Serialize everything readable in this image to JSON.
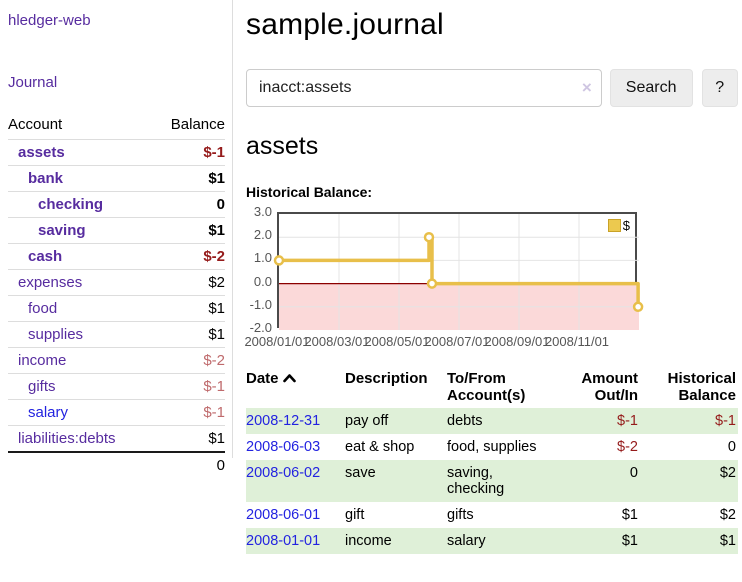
{
  "app": {
    "title": "hledger-web",
    "nav_journal": "Journal"
  },
  "sidebar": {
    "col_account": "Account",
    "col_balance": "Balance",
    "accounts": [
      {
        "label": "assets",
        "value": "$-1",
        "depth": 0,
        "bold": true,
        "link": "purple"
      },
      {
        "label": "bank",
        "value": "$1",
        "depth": 1,
        "bold": true,
        "link": "purple"
      },
      {
        "label": "checking",
        "value": "0",
        "depth": 2,
        "bold": true,
        "link": "purple"
      },
      {
        "label": "saving",
        "value": "$1",
        "depth": 2,
        "bold": true,
        "link": "purple"
      },
      {
        "label": "cash",
        "value": "$-2",
        "depth": 1,
        "bold": true,
        "link": "purple"
      },
      {
        "label": "expenses",
        "value": "$2",
        "depth": 0,
        "bold": false,
        "link": "purple"
      },
      {
        "label": "food",
        "value": "$1",
        "depth": 1,
        "bold": false,
        "link": "purple"
      },
      {
        "label": "supplies",
        "value": "$1",
        "depth": 1,
        "bold": false,
        "link": "purple"
      },
      {
        "label": "income",
        "value": "$-2",
        "depth": 0,
        "bold": false,
        "link": "purple"
      },
      {
        "label": "gifts",
        "value": "$-1",
        "depth": 1,
        "bold": false,
        "link": "purple"
      },
      {
        "label": "salary",
        "value": "$-1",
        "depth": 1,
        "bold": false,
        "link": "blue"
      },
      {
        "label": "liabilities:debts",
        "value": "$1",
        "depth": 0,
        "bold": false,
        "link": "purple"
      }
    ],
    "total": "0"
  },
  "header": {
    "title": "sample.journal"
  },
  "search": {
    "value": "inacct:assets",
    "clear_icon": "×",
    "button_label": "Search",
    "help_label": "?"
  },
  "account_page": {
    "heading": "assets",
    "chart_label": "Historical Balance:"
  },
  "chart_data": {
    "type": "line",
    "title": "Historical Balance",
    "step": true,
    "legend": [
      {
        "label": "$",
        "color": "#ecc94f"
      }
    ],
    "ylim": [
      -2,
      3
    ],
    "y_ticks": [
      3.0,
      2.0,
      1.0,
      0.0,
      -1.0,
      -2.0
    ],
    "x_tick_labels": [
      "2008/01/01",
      "2008/03/01",
      "2008/05/01",
      "2008/07/01",
      "2008/09/01",
      "2008/11/01"
    ],
    "x_tick_months": [
      0,
      2,
      4,
      6,
      8,
      10
    ],
    "xlim_months": [
      0,
      12
    ],
    "points": [
      {
        "date": "2008-01-01",
        "x": 0,
        "y": 1
      },
      {
        "date": "2008-06-01",
        "x": 5,
        "y": 2
      },
      {
        "date": "2008-06-03",
        "x": 5.1,
        "y": 0
      },
      {
        "date": "2008-12-31",
        "x": 11.97,
        "y": -1
      }
    ],
    "line_color": "#e8bf4a",
    "negative_fill": "#fbd9d9",
    "zero_line_color": "#8b0000",
    "grid_color": "#e4e4e4"
  },
  "register": {
    "columns": {
      "date": "Date",
      "description": "Description",
      "tofrom": "To/From Account(s)",
      "amount": "Amount Out/In",
      "balance": "Historical Balance"
    },
    "rows": [
      {
        "date": "2008-12-31",
        "description": "pay off",
        "accounts": "debts",
        "amount": "$-1",
        "balance": "$-1"
      },
      {
        "date": "2008-06-03",
        "description": "eat & shop",
        "accounts": "food, supplies",
        "amount": "$-2",
        "balance": "0"
      },
      {
        "date": "2008-06-02",
        "description": "save",
        "accounts": "saving, checking",
        "amount": "0",
        "balance": "$2"
      },
      {
        "date": "2008-06-01",
        "description": "gift",
        "accounts": "gifts",
        "amount": "$1",
        "balance": "$2"
      },
      {
        "date": "2008-01-01",
        "description": "income",
        "accounts": "salary",
        "amount": "$1",
        "balance": "$1"
      }
    ]
  },
  "colors": {
    "accent_purple": "#572c9f",
    "link_blue": "#2323e0",
    "negative": "#951b1b",
    "negative_soft": "#bf6a6c",
    "stripe_green": "#dff0d8",
    "chart_gold": "#e8bf4a"
  }
}
